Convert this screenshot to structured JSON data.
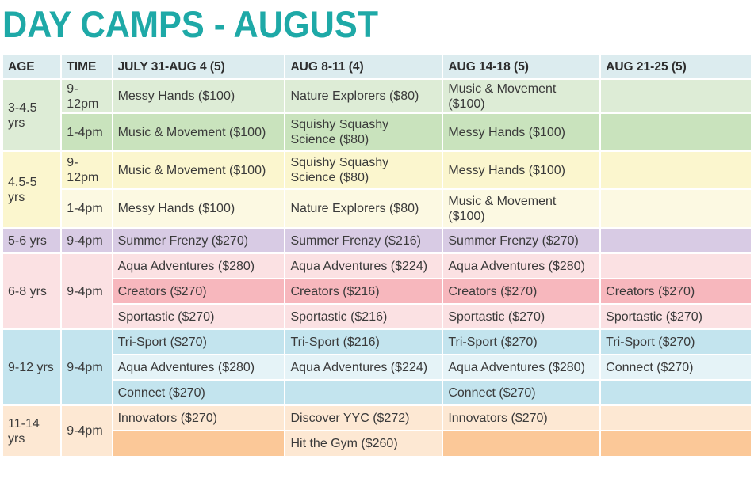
{
  "title": "DAY CAMPS - AUGUST",
  "headers": {
    "age": "AGE",
    "time": "TIME",
    "week1": "JULY 31-AUG 4 (5)",
    "week2": "AUG 8-11 (4)",
    "week3": "AUG 14-18 (5)",
    "week4": "AUG 21-25 (5)"
  },
  "groups": [
    {
      "age": "3-4.5 yrs",
      "rows": [
        {
          "time": "9-12pm",
          "w1": "Messy Hands ($100)",
          "w2": "Nature Explorers ($80)",
          "w3": "Music & Movement ($100)",
          "w4": ""
        },
        {
          "time": "1-4pm",
          "w1": "Music & Movement ($100)",
          "w2": "Squishy Squashy Science ($80)",
          "w3": "Messy Hands ($100)",
          "w4": ""
        }
      ]
    },
    {
      "age": "4.5-5 yrs",
      "rows": [
        {
          "time": "9-12pm",
          "w1": "Music & Movement ($100)",
          "w2": "Squishy Squashy Science ($80)",
          "w3": "Messy Hands ($100)",
          "w4": ""
        },
        {
          "time": "1-4pm",
          "w1": "Messy Hands ($100)",
          "w2": "Nature Explorers ($80)",
          "w3": "Music & Movement ($100)",
          "w4": ""
        }
      ]
    },
    {
      "age": "5-6 yrs",
      "time": "9-4pm",
      "rows": [
        {
          "w1": "Summer Frenzy ($270)",
          "w2": "Summer Frenzy ($216)",
          "w3": "Summer Frenzy ($270)",
          "w4": ""
        }
      ]
    },
    {
      "age": "6-8 yrs",
      "time": "9-4pm",
      "rows": [
        {
          "w1": "Aqua Adventures ($280)",
          "w2": "Aqua Adventures ($224)",
          "w3": "Aqua Adventures ($280)",
          "w4": ""
        },
        {
          "w1": "Creators ($270)",
          "w2": "Creators ($216)",
          "w3": "Creators ($270)",
          "w4": "Creators ($270)"
        },
        {
          "w1": "Sportastic ($270)",
          "w2": "Sportastic ($216)",
          "w3": "Sportastic ($270)",
          "w4": "Sportastic ($270)"
        }
      ]
    },
    {
      "age": "9-12 yrs",
      "time": "9-4pm",
      "rows": [
        {
          "w1": "Tri-Sport ($270)",
          "w2": "Tri-Sport ($216)",
          "w3": "Tri-Sport ($270)",
          "w4": "Tri-Sport ($270)"
        },
        {
          "w1": "Aqua Adventures ($280)",
          "w2": "Aqua Adventures ($224)",
          "w3": "Aqua Adventures ($280)",
          "w4": "Connect ($270)"
        },
        {
          "w1": "Connect ($270)",
          "w2": "",
          "w3": "Connect ($270)",
          "w4": ""
        }
      ]
    },
    {
      "age": "11-14 yrs",
      "time": "9-4pm",
      "rows": [
        {
          "w1": "Innovators ($270)",
          "w2": "Discover YYC ($272)",
          "w3": "Innovators ($270)",
          "w4": ""
        },
        {
          "w1": "",
          "w2": "Hit the Gym ($260)",
          "w3": "",
          "w4": ""
        }
      ]
    }
  ],
  "colors": {
    "title": "#1ea9a7",
    "header": "#dcecef",
    "age_3_45": "#ddecd6",
    "age_45_5": "#fbf6ce",
    "age_5_6": "#d8cbe4",
    "age_6_8": "#fbe1e3",
    "age_9_12": "#c3e4ee",
    "age_11_14": "#fde8d3"
  }
}
